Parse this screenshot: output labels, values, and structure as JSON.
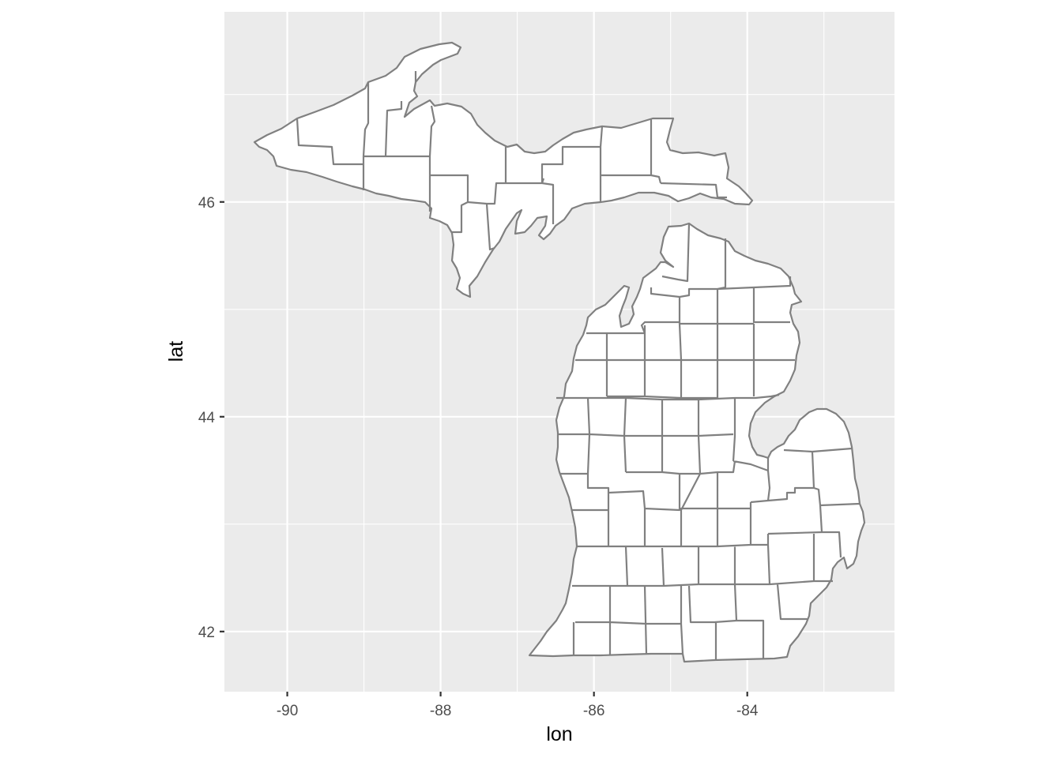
{
  "chart_data": {
    "type": "map",
    "region": "michigan-counties",
    "xlabel": "lon",
    "ylabel": "lat",
    "xlim": [
      -90.82,
      -82.08
    ],
    "ylim": [
      41.44,
      47.77
    ],
    "x_ticks": [
      -90,
      -88,
      -86,
      -84
    ],
    "y_ticks": [
      42,
      44,
      46
    ],
    "x_tick_labels": [
      "-90",
      "-88",
      "-86",
      "-84"
    ],
    "y_tick_labels": [
      "42",
      "44",
      "46"
    ],
    "grid": true,
    "colors": {
      "panel_background": "#ebebeb",
      "grid_major": "#ffffff",
      "county_fill": "#ffffff",
      "county_border": "#808080"
    }
  }
}
